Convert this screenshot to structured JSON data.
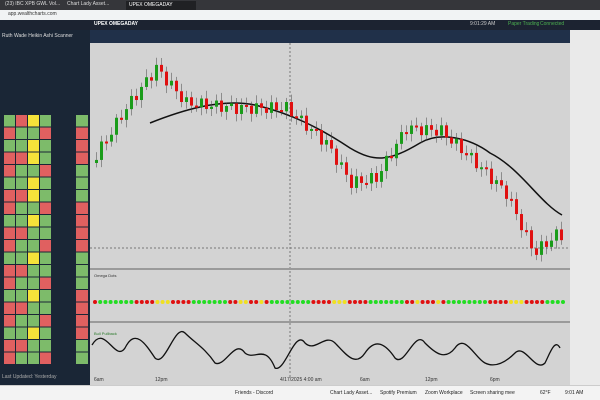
{
  "browser": {
    "tabs": [
      "UPEX OMEGADAY",
      "Chart Lady Asset...",
      "(23) IBC XPB GWL Vol..."
    ],
    "url": "app.wealthcharts.com"
  },
  "app": {
    "title": "UPEX OMEGADAY",
    "clock": "9:01:29 AM",
    "mode": "Paper Trading",
    "status": "Connected",
    "panel_title": "Ruth Wade Heikin Ashi Scanner",
    "footer": "Last Updated: Yesterday"
  },
  "chart": {
    "indicator": "Omega Dots",
    "oscillator": "Bull Pullback",
    "time_labels": [
      "6am",
      "12pm",
      "4/17/2025 4:00 am",
      "6am",
      "12pm",
      "6pm"
    ]
  },
  "taskbar": {
    "items": [
      "Friends - Discord",
      "Chart Lady Asset...",
      "Spotify Premium",
      "Zoom Workplace",
      "Screen sharing meet..."
    ],
    "weather": "62°F",
    "clock": "9:01 AM"
  }
}
